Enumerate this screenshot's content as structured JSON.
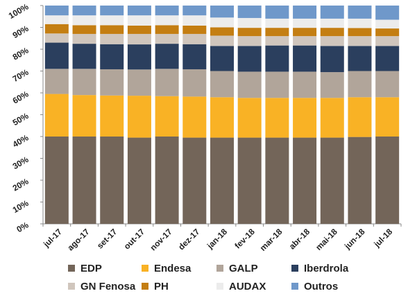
{
  "chart_data": {
    "type": "bar",
    "stacked": true,
    "percent": true,
    "categories": [
      "jul-17",
      "ago-17",
      "set-17",
      "out-17",
      "nov-17",
      "dez-17",
      "jan-18",
      "fev-18",
      "mar-18",
      "abr-18",
      "mai-18",
      "jun-18",
      "jul-18"
    ],
    "y_ticks": [
      "0%",
      "10%",
      "20%",
      "30%",
      "40%",
      "50%",
      "60%",
      "70%",
      "80%",
      "90%",
      "100%"
    ],
    "ylim": [
      0,
      100
    ],
    "grid": false,
    "legend_position": "bottom",
    "series": [
      {
        "name": "EDP",
        "color": "#736559",
        "values": [
          40.0,
          40.0,
          40.0,
          39.5,
          40.0,
          39.5,
          39.5,
          39.5,
          39.5,
          39.5,
          39.5,
          39.8,
          40.0
        ]
      },
      {
        "name": "Endesa",
        "color": "#f9b225",
        "values": [
          19.5,
          19.0,
          18.8,
          19.2,
          18.5,
          18.8,
          18.5,
          18.2,
          18.2,
          18.2,
          18.2,
          18.2,
          18.0
        ]
      },
      {
        "name": "GALP",
        "color": "#b1a59a",
        "values": [
          11.5,
          12.0,
          12.0,
          12.0,
          12.5,
          12.5,
          12.0,
          12.0,
          12.0,
          12.0,
          11.8,
          12.0,
          12.0
        ]
      },
      {
        "name": "Iberdrola",
        "color": "#2b3f5e",
        "values": [
          12.0,
          11.5,
          11.5,
          11.5,
          11.5,
          11.5,
          11.5,
          11.8,
          12.0,
          12.0,
          12.0,
          11.5,
          11.5
        ]
      },
      {
        "name": "GN Fenosa",
        "color": "#d0c6bd",
        "values": [
          4.2,
          4.5,
          4.7,
          4.8,
          4.5,
          4.7,
          4.7,
          4.5,
          4.3,
          4.3,
          4.5,
          4.5,
          4.5
        ]
      },
      {
        "name": "PH",
        "color": "#c47e12",
        "values": [
          4.3,
          4.0,
          4.0,
          3.8,
          4.0,
          3.8,
          3.8,
          3.8,
          3.8,
          3.8,
          3.8,
          3.7,
          3.5
        ]
      },
      {
        "name": "AUDAX",
        "color": "#ececec",
        "values": [
          4.0,
          4.5,
          4.5,
          4.7,
          4.5,
          4.7,
          4.5,
          4.5,
          4.2,
          4.2,
          4.2,
          4.3,
          4.0
        ]
      },
      {
        "name": "Outros",
        "color": "#6f98ca",
        "values": [
          4.5,
          4.5,
          4.5,
          4.5,
          4.5,
          4.5,
          5.5,
          5.7,
          6.0,
          6.0,
          6.0,
          6.0,
          6.5
        ]
      }
    ]
  }
}
